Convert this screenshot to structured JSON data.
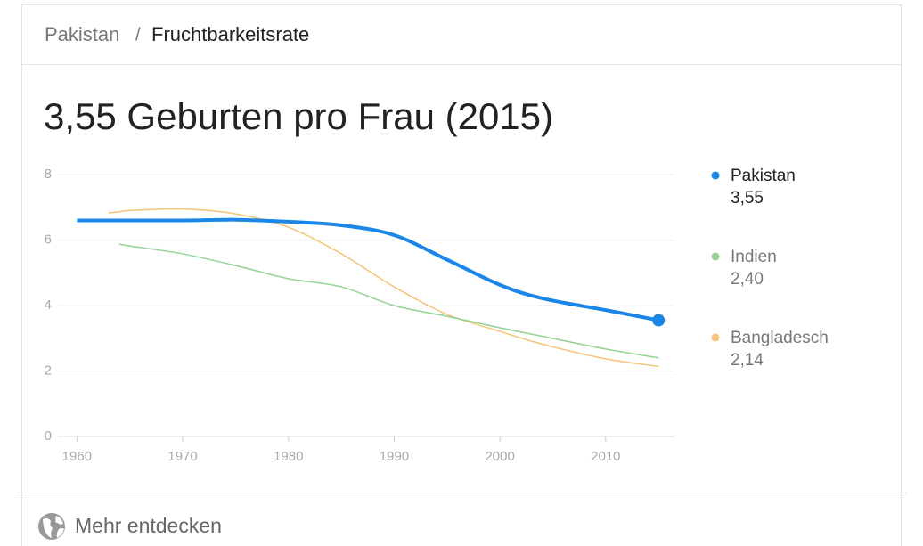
{
  "header": {
    "country": "Pakistan",
    "separator": "/",
    "topic": "Fruchtbarkeitsrate"
  },
  "chart_data": {
    "type": "line",
    "title": "3,55 Geburten pro Frau (2015)",
    "x": [
      1960,
      1963,
      1964,
      1965,
      1970,
      1975,
      1980,
      1985,
      1990,
      1995,
      2000,
      2004,
      2010,
      2015
    ],
    "series": [
      {
        "name": "Pakistan",
        "color": "#1a87e8",
        "values": [
          6.6,
          6.6,
          6.6,
          6.6,
          6.6,
          6.62,
          6.56,
          6.45,
          6.15,
          5.4,
          4.63,
          4.22,
          3.86,
          3.55
        ],
        "value_labels": [
          null,
          null,
          null,
          null,
          null,
          null,
          null,
          null,
          null,
          null,
          null,
          null,
          null,
          "3,55"
        ]
      },
      {
        "name": "Indien",
        "color": "#93d396",
        "values": [
          null,
          null,
          5.88,
          5.82,
          5.58,
          5.22,
          4.82,
          4.57,
          4.0,
          3.67,
          3.32,
          3.06,
          2.67,
          2.4
        ],
        "value_labels": [
          null,
          null,
          null,
          null,
          null,
          null,
          null,
          null,
          null,
          null,
          null,
          null,
          null,
          "2,40"
        ]
      },
      {
        "name": "Bangladesch",
        "color": "#f5c478",
        "values": [
          null,
          6.83,
          6.86,
          6.9,
          6.95,
          6.8,
          6.39,
          5.58,
          4.57,
          3.73,
          3.21,
          2.82,
          2.37,
          2.14
        ],
        "value_labels": [
          null,
          null,
          null,
          null,
          null,
          null,
          null,
          null,
          null,
          null,
          null,
          null,
          null,
          "2,14"
        ]
      }
    ],
    "xlim": [
      1958.2,
      2016.5
    ],
    "xticks": [
      1960,
      1970,
      1980,
      1990,
      2000,
      2010
    ],
    "ylim": [
      0,
      8
    ],
    "yticks": [
      0,
      2,
      4,
      6,
      8
    ],
    "grid": true
  },
  "footer": {
    "link": "Mehr entdecken"
  }
}
